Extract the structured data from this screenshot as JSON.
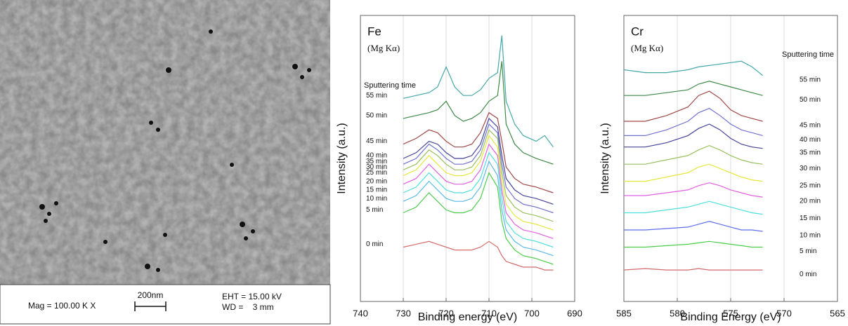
{
  "sem_image": {
    "info": {
      "magnification": "Mag = 100.00 K X",
      "scale": "200nm",
      "eht": "EHT = 15.00 kV",
      "wd": "WD =    3 mm"
    }
  },
  "chart_data": [
    {
      "type": "line",
      "title": "Fe",
      "subtitle": "(Mg Kα)",
      "annotation": "Sputtering time",
      "x_label": "Binding energy (eV)",
      "y_label": "Intensity (a.u.)",
      "xlim": [
        740,
        690
      ],
      "xticks": [
        740,
        730,
        720,
        710,
        700,
        690
      ],
      "ylim": [
        0,
        100
      ],
      "grid": true,
      "legend": "left",
      "x": [
        730,
        727,
        724,
        722,
        720,
        718,
        716,
        714,
        712,
        710,
        708,
        707,
        706,
        704,
        702,
        699,
        697,
        695
      ],
      "series": [
        {
          "name": "0 min",
          "color": "#d46a6a",
          "values": [
            19,
            20,
            21,
            20,
            19,
            18,
            18,
            18,
            19,
            21,
            19,
            16,
            14,
            13,
            12,
            12,
            11,
            11
          ]
        },
        {
          "name": "5 min",
          "color": "#4ccc4c",
          "values": [
            31,
            33,
            38,
            35,
            32,
            31,
            31,
            32,
            36,
            45,
            40,
            28,
            22,
            18,
            16,
            15,
            14,
            13
          ]
        },
        {
          "name": "10 min",
          "color": "#5cb8e8",
          "values": [
            35,
            37,
            42,
            39,
            36,
            35,
            35,
            36,
            40,
            49,
            44,
            32,
            25,
            21,
            19,
            18,
            17,
            16
          ]
        },
        {
          "name": "15 min",
          "color": "#4fdede",
          "values": [
            38,
            40,
            45,
            42,
            39,
            38,
            38,
            39,
            43,
            52,
            48,
            36,
            28,
            24,
            22,
            21,
            20,
            19
          ]
        },
        {
          "name": "20 min",
          "color": "#e060e0",
          "values": [
            41,
            43,
            48,
            45,
            42,
            41,
            41,
            42,
            46,
            55,
            51,
            39,
            31,
            27,
            25,
            24,
            23,
            22
          ]
        },
        {
          "name": "25 min",
          "color": "#e6e63c",
          "values": [
            44,
            46,
            51,
            48,
            45,
            44,
            44,
            45,
            49,
            58,
            54,
            42,
            34,
            30,
            28,
            27,
            26,
            25
          ]
        },
        {
          "name": "30 min",
          "color": "#9ac060",
          "values": [
            46,
            48,
            53,
            51,
            48,
            46,
            46,
            47,
            51,
            60,
            57,
            45,
            37,
            33,
            31,
            30,
            29,
            28
          ]
        },
        {
          "name": "35 min",
          "color": "#7070d0",
          "values": [
            48,
            50,
            55,
            53,
            50,
            48,
            48,
            49,
            53,
            62,
            59,
            48,
            40,
            36,
            34,
            33,
            32,
            31
          ]
        },
        {
          "name": "40 min",
          "color": "#44449a",
          "values": [
            50,
            52,
            56,
            55,
            52,
            50,
            50,
            51,
            55,
            64,
            61,
            51,
            43,
            39,
            37,
            36,
            35,
            34
          ]
        },
        {
          "name": "45 min",
          "color": "#a04848",
          "values": [
            55,
            57,
            60,
            59,
            56,
            54,
            54,
            55,
            59,
            66,
            64,
            56,
            47,
            43,
            41,
            40,
            39,
            38
          ]
        },
        {
          "name": "50 min",
          "color": "#3f8a48",
          "values": [
            64,
            65,
            66,
            67,
            70,
            65,
            63,
            64,
            66,
            70,
            72,
            84,
            62,
            55,
            52,
            50,
            49,
            48
          ]
        },
        {
          "name": "55 min",
          "color": "#45a8a8",
          "values": [
            71,
            72,
            73,
            75,
            82,
            75,
            72,
            72,
            74,
            78,
            80,
            93,
            70,
            62,
            58,
            56,
            58,
            54
          ]
        }
      ]
    },
    {
      "type": "line",
      "title": "Cr",
      "subtitle": "(Mg Kα)",
      "annotation": "Sputtering time",
      "x_label": "Binding Energy (eV)",
      "y_label": "Intensity (a.u.)",
      "xlim": [
        585,
        565
      ],
      "xticks": [
        585,
        580,
        575,
        570,
        565
      ],
      "ylim": [
        0,
        100
      ],
      "grid": true,
      "legend": "right",
      "x": [
        585,
        583,
        581,
        579,
        578,
        577,
        576,
        575,
        574,
        573,
        572
      ],
      "series": [
        {
          "name": "0 min",
          "color": "#d46a6a",
          "values": [
            11,
            11.5,
            11,
            11,
            11.5,
            11,
            11,
            11,
            11,
            11,
            11
          ]
        },
        {
          "name": "5 min",
          "color": "#4ccc4c",
          "values": [
            19,
            19,
            19.5,
            20,
            20.5,
            21,
            20.5,
            20,
            19.5,
            19,
            19
          ]
        },
        {
          "name": "10 min",
          "color": "#5c6ee8",
          "values": [
            25,
            25,
            25.5,
            26,
            27,
            28,
            27,
            26,
            25,
            25,
            24.5
          ]
        },
        {
          "name": "15 min",
          "color": "#4fdede",
          "values": [
            31,
            31,
            32,
            33,
            34,
            35,
            34,
            33,
            32,
            31,
            30.5
          ]
        },
        {
          "name": "20 min",
          "color": "#e060e0",
          "values": [
            37,
            37,
            38,
            39,
            40.5,
            41.5,
            40.5,
            39,
            38,
            37,
            36.5
          ]
        },
        {
          "name": "25 min",
          "color": "#e6e63c",
          "values": [
            42,
            42,
            43.5,
            45,
            47,
            48,
            46.5,
            45,
            43.5,
            42.5,
            42
          ]
        },
        {
          "name": "30 min",
          "color": "#9ac060",
          "values": [
            48,
            48,
            49.5,
            51,
            53,
            54.5,
            53,
            51,
            49.5,
            48.5,
            48
          ]
        },
        {
          "name": "35 min",
          "color": "#44449a",
          "values": [
            54,
            54,
            55.5,
            58,
            60.5,
            62,
            60,
            57,
            55,
            54,
            53.5
          ]
        },
        {
          "name": "40 min",
          "color": "#7070d0",
          "values": [
            58,
            58,
            60,
            63,
            66,
            67.5,
            65,
            62,
            60,
            59,
            58
          ]
        },
        {
          "name": "45 min",
          "color": "#a04848",
          "values": [
            63,
            63,
            65,
            68,
            72,
            73.5,
            71,
            67,
            65,
            64,
            63
          ]
        },
        {
          "name": "50 min",
          "color": "#3f8a48",
          "values": [
            72,
            72,
            73,
            74,
            76,
            77,
            76,
            75,
            74,
            73,
            72
          ]
        },
        {
          "name": "55 min",
          "color": "#45a8a8",
          "values": [
            81,
            80,
            80,
            81,
            82,
            82.5,
            83,
            83.5,
            84,
            82,
            79
          ]
        }
      ]
    }
  ]
}
